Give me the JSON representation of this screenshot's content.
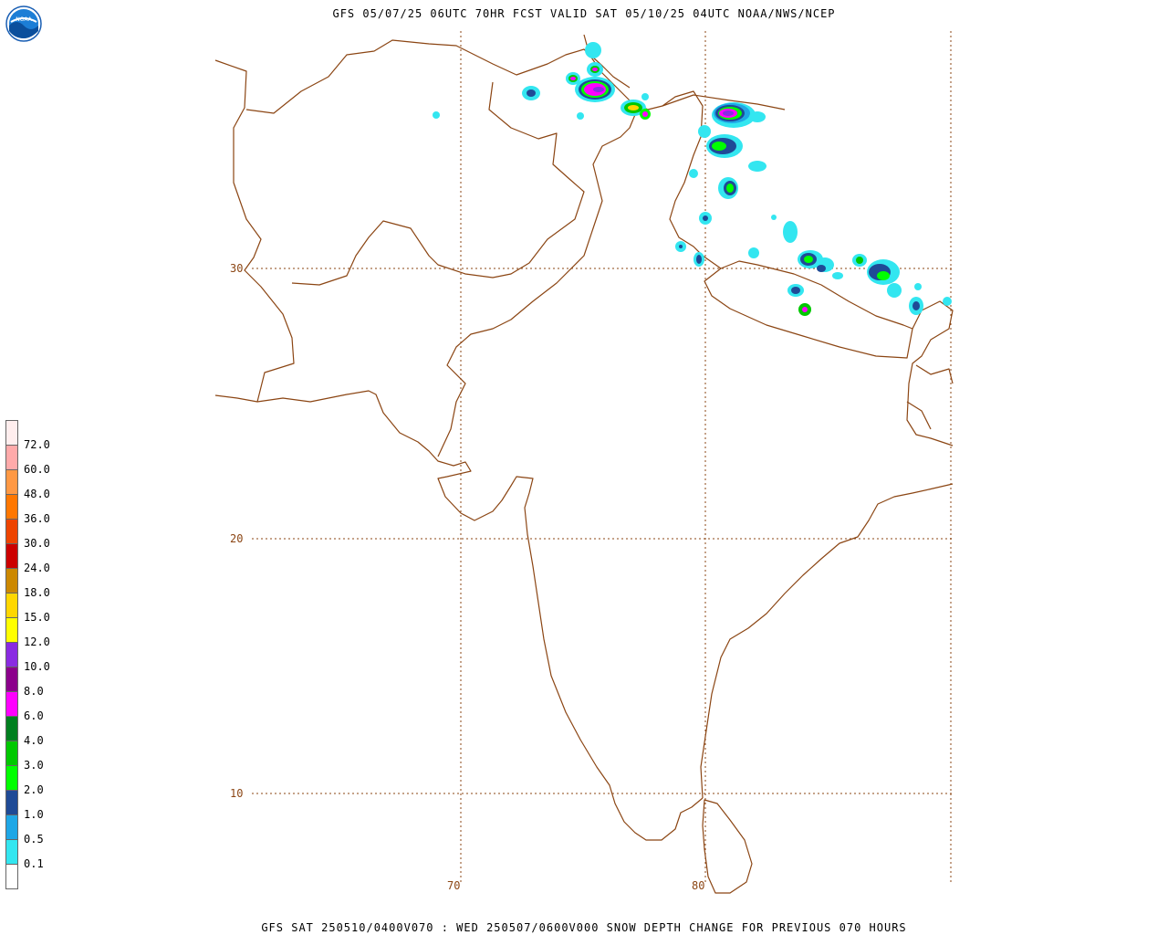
{
  "header": {
    "title": "GFS 05/07/25 06UTC 70HR FCST VALID SAT 05/10/25 04UTC NOAA/NWS/NCEP",
    "logo_text": "NOAA"
  },
  "footer": {
    "title": "GFS SAT 250510/0400V070 : WED 250507/0600V000 SNOW DEPTH CHANGE FOR PREVIOUS 070 HOURS"
  },
  "map": {
    "lat_labels": [
      "30",
      "20",
      "10"
    ],
    "lon_labels": [
      "70",
      "80"
    ],
    "boundary_color": "#8B4513",
    "grid_color": "#8B4513"
  },
  "legend": {
    "levels": [
      {
        "label": "",
        "color": "#ffffff"
      },
      {
        "label": "0.1",
        "color": "#33e6f0"
      },
      {
        "label": "0.5",
        "color": "#1fa7e6"
      },
      {
        "label": "1.0",
        "color": "#1f4a96"
      },
      {
        "label": "2.0",
        "color": "#00ff00"
      },
      {
        "label": "3.0",
        "color": "#00c800"
      },
      {
        "label": "4.0",
        "color": "#007f1f"
      },
      {
        "label": "6.0",
        "color": "#ff00ff"
      },
      {
        "label": "8.0",
        "color": "#8b008b"
      },
      {
        "label": "10.0",
        "color": "#8a2be2"
      },
      {
        "label": "12.0",
        "color": "#ffff00"
      },
      {
        "label": "15.0",
        "color": "#ffd700"
      },
      {
        "label": "18.0",
        "color": "#cc8800"
      },
      {
        "label": "24.0",
        "color": "#cc0000"
      },
      {
        "label": "30.0",
        "color": "#ee4400"
      },
      {
        "label": "36.0",
        "color": "#ff7700"
      },
      {
        "label": "48.0",
        "color": "#ff9944"
      },
      {
        "label": "60.0",
        "color": "#ffaaaa"
      },
      {
        "label": "72.0",
        "color": "#ffeeee"
      }
    ]
  }
}
